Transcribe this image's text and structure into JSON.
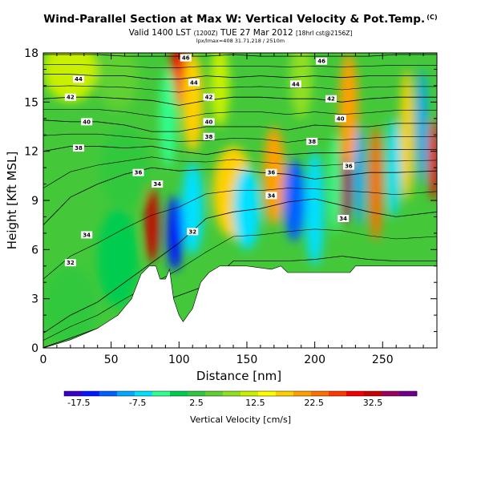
{
  "title": {
    "main": "Wind-Parallel Section at Max W: Vertical Velocity & Pot.Temp.",
    "badge": "(C)",
    "valid": "Valid 1400 LST",
    "valid_small1": "(1200Z)",
    "valid_date": "TUE 27 Mar 2012",
    "valid_small2": "[18hrl cst@2156Z]",
    "subtitle": "lpx/lmax=408 31.71,218 / 2510m"
  },
  "chart_data": {
    "type": "heatmap",
    "xlabel": "Distance [nm]",
    "ylabel": "Height [Kft MSL]",
    "xlim": [
      0,
      290
    ],
    "ylim": [
      0,
      18
    ],
    "xticks": [
      "0",
      "50",
      "100",
      "150",
      "200",
      "250"
    ],
    "xtick_values": [
      0,
      50,
      100,
      150,
      200,
      250
    ],
    "yticks": [
      "0",
      "3",
      "6",
      "9",
      "12",
      "15",
      "18"
    ],
    "ytick_values": [
      0,
      3,
      6,
      9,
      12,
      15,
      18
    ],
    "colorbar": {
      "label": "Vertical Velocity [cm/s]",
      "range": [
        -20,
        40
      ],
      "tick_labels": [
        "-17.5",
        "-7.5",
        "2.5",
        "12.5",
        "22.5",
        "32.5"
      ],
      "tick_values": [
        -17.5,
        -7.5,
        2.5,
        12.5,
        22.5,
        32.5
      ],
      "colors": [
        "#3a00c8",
        "#0018ff",
        "#0060ff",
        "#00a8ff",
        "#00e0ff",
        "#30ff90",
        "#00cc50",
        "#30c83c",
        "#60d030",
        "#90e020",
        "#c8f000",
        "#ffff00",
        "#ffd000",
        "#ffa000",
        "#ff7000",
        "#ff3800",
        "#f00000",
        "#c80000",
        "#9c0060",
        "#70008c"
      ]
    },
    "terrain": [
      [
        0,
        0
      ],
      [
        20,
        0.5
      ],
      [
        40,
        1.2
      ],
      [
        55,
        2.0
      ],
      [
        65,
        3.0
      ],
      [
        72,
        4.5
      ],
      [
        78,
        5.0
      ],
      [
        83,
        5.0
      ],
      [
        86,
        4.2
      ],
      [
        90,
        4.2
      ],
      [
        93,
        4.8
      ],
      [
        96,
        3.0
      ],
      [
        100,
        2.0
      ],
      [
        103,
        1.6
      ],
      [
        110,
        2.4
      ],
      [
        116,
        4.0
      ],
      [
        122,
        4.6
      ],
      [
        130,
        5.0
      ],
      [
        150,
        5.0
      ],
      [
        168,
        4.8
      ],
      [
        175,
        5.0
      ],
      [
        180,
        4.6
      ],
      [
        190,
        4.6
      ],
      [
        195,
        4.6
      ],
      [
        203,
        4.6
      ],
      [
        210,
        4.6
      ],
      [
        215,
        4.6
      ],
      [
        226,
        4.6
      ],
      [
        230,
        5.0
      ],
      [
        270,
        5.0
      ],
      [
        290,
        5.0
      ]
    ],
    "theta_contours": [
      {
        "label": "32",
        "values": [
          0.02,
          0.6,
          1.2,
          2.0,
          2.6,
          3.2,
          3.8,
          5.3,
          5.3,
          5.3,
          5.4,
          5.6,
          5.4,
          5.3,
          5.3
        ]
      },
      {
        "label": "34",
        "values": [
          0.9,
          2.0,
          2.8,
          4.0,
          5.2,
          6.4,
          7.9,
          8.3,
          8.5,
          8.9,
          9.1,
          8.7,
          8.3,
          8.0,
          8.3
        ]
      },
      {
        "label": "36",
        "values": [
          7.5,
          9.2,
          10.0,
          10.6,
          11.0,
          10.8,
          10.9,
          10.9,
          10.7,
          10.6,
          10.3,
          10.5,
          10.7,
          10.7,
          10.8
        ]
      },
      {
        "label": "38",
        "values": [
          12.0,
          12.3,
          12.3,
          12.2,
          12.3,
          12.0,
          11.8,
          12.1,
          12.0,
          11.8,
          11.9,
          11.9,
          12.1,
          12.1,
          12.1
        ]
      },
      {
        "label": "40",
        "values": [
          13.9,
          13.8,
          13.8,
          13.6,
          13.2,
          13.2,
          13.5,
          13.5,
          13.5,
          13.3,
          13.6,
          13.5,
          13.5,
          13.7,
          13.7
        ]
      },
      {
        "label": "42",
        "values": [
          15.2,
          15.3,
          15.3,
          15.2,
          15.1,
          14.8,
          15.1,
          15.3,
          15.3,
          15.2,
          15.2,
          15.0,
          15.2,
          15.3,
          15.3
        ]
      },
      {
        "label": "44",
        "values": [
          16.7,
          16.7,
          16.6,
          16.6,
          16.4,
          16.4,
          16.6,
          16.5,
          16.6,
          16.5,
          16.6,
          16.5,
          16.6,
          16.6,
          16.6
        ]
      },
      {
        "label": "46",
        "values": [
          17.9,
          17.9,
          17.9,
          17.8,
          17.8,
          17.8,
          17.8,
          17.9,
          17.8,
          17.8,
          17.8,
          17.8,
          17.8,
          17.9,
          17.9
        ]
      }
    ],
    "contour_x": [
      0,
      20,
      40,
      60,
      80,
      100,
      120,
      140,
      160,
      180,
      200,
      220,
      240,
      260,
      290
    ],
    "contour_labels": [
      {
        "text": "44",
        "x": 26,
        "y": 16.4
      },
      {
        "text": "46",
        "x": 105,
        "y": 17.7
      },
      {
        "text": "46",
        "x": 205,
        "y": 17.5
      },
      {
        "text": "44",
        "x": 111,
        "y": 16.2
      },
      {
        "text": "44",
        "x": 186,
        "y": 16.1
      },
      {
        "text": "42",
        "x": 20,
        "y": 15.3
      },
      {
        "text": "42",
        "x": 122,
        "y": 15.3
      },
      {
        "text": "42",
        "x": 212,
        "y": 15.2
      },
      {
        "text": "40",
        "x": 32,
        "y": 13.8
      },
      {
        "text": "40",
        "x": 122,
        "y": 13.8
      },
      {
        "text": "40",
        "x": 219,
        "y": 14.0
      },
      {
        "text": "38",
        "x": 26,
        "y": 12.2
      },
      {
        "text": "38",
        "x": 122,
        "y": 12.9
      },
      {
        "text": "38",
        "x": 198,
        "y": 12.6
      },
      {
        "text": "36",
        "x": 70,
        "y": 10.7
      },
      {
        "text": "36",
        "x": 168,
        "y": 10.7
      },
      {
        "text": "36",
        "x": 225,
        "y": 11.1
      },
      {
        "text": "34",
        "x": 84,
        "y": 10.0
      },
      {
        "text": "34",
        "x": 168,
        "y": 9.3
      },
      {
        "text": "34",
        "x": 221,
        "y": 7.9
      },
      {
        "text": "34",
        "x": 32,
        "y": 6.9
      },
      {
        "text": "32",
        "x": 110,
        "y": 7.1
      },
      {
        "text": "32",
        "x": 20,
        "y": 5.2
      }
    ],
    "velocity_features": [
      {
        "x": 80,
        "y": 7.5,
        "w": 5,
        "h": 2.3,
        "v": 33
      },
      {
        "x": 97,
        "y": 7.0,
        "w": 6,
        "h": 2.3,
        "v": -16
      },
      {
        "x": 110,
        "y": 8.5,
        "w": 8,
        "h": 2.8,
        "v": -7
      },
      {
        "x": 100,
        "y": 16.8,
        "w": 6,
        "h": 2.0,
        "v": 28
      },
      {
        "x": 110,
        "y": 15.0,
        "w": 8,
        "h": 3.0,
        "v": 17
      },
      {
        "x": 92,
        "y": 14.0,
        "w": 6,
        "h": 3.0,
        "v": -5
      },
      {
        "x": 130,
        "y": 16.0,
        "w": 7,
        "h": 2.5,
        "v": 11
      },
      {
        "x": 140,
        "y": 9.5,
        "w": 15,
        "h": 2.8,
        "v": 18
      },
      {
        "x": 150,
        "y": 8.5,
        "w": 10,
        "h": 2.5,
        "v": -8
      },
      {
        "x": 170,
        "y": 10.5,
        "w": 8,
        "h": 3.0,
        "v": 20
      },
      {
        "x": 185,
        "y": 9.0,
        "w": 8,
        "h": 2.5,
        "v": -14
      },
      {
        "x": 200,
        "y": 8.5,
        "w": 7,
        "h": 3.5,
        "v": -6
      },
      {
        "x": 190,
        "y": 16.5,
        "w": 8,
        "h": 2.5,
        "v": 9
      },
      {
        "x": 222,
        "y": 10.3,
        "w": 5,
        "h": 2.8,
        "v": 36
      },
      {
        "x": 225,
        "y": 14.5,
        "w": 7,
        "h": 3.5,
        "v": 20
      },
      {
        "x": 215,
        "y": 10.0,
        "w": 4,
        "h": 3.0,
        "v": -5
      },
      {
        "x": 233,
        "y": 10.5,
        "w": 4,
        "h": 3.0,
        "v": -10
      },
      {
        "x": 245,
        "y": 10.0,
        "w": 5,
        "h": 3.5,
        "v": 22
      },
      {
        "x": 258,
        "y": 11.0,
        "w": 5,
        "h": 3.0,
        "v": -7
      },
      {
        "x": 268,
        "y": 13.0,
        "w": 5,
        "h": 4.0,
        "v": 17
      },
      {
        "x": 279,
        "y": 13.5,
        "w": 4,
        "h": 3.5,
        "v": -9
      },
      {
        "x": 288,
        "y": 11.5,
        "w": 4,
        "h": 2.5,
        "v": 30
      },
      {
        "x": 20,
        "y": 17.0,
        "w": 20,
        "h": 2.0,
        "v": 10
      },
      {
        "x": 55,
        "y": 16.5,
        "w": 15,
        "h": 2.0,
        "v": 6
      },
      {
        "x": 60,
        "y": 11.0,
        "w": 18,
        "h": 2.5,
        "v": 1
      },
      {
        "x": 55,
        "y": 5.5,
        "w": 15,
        "h": 3.0,
        "v": 0
      },
      {
        "x": 20,
        "y": 2.5,
        "w": 20,
        "h": 2.5,
        "v": 1
      }
    ]
  }
}
